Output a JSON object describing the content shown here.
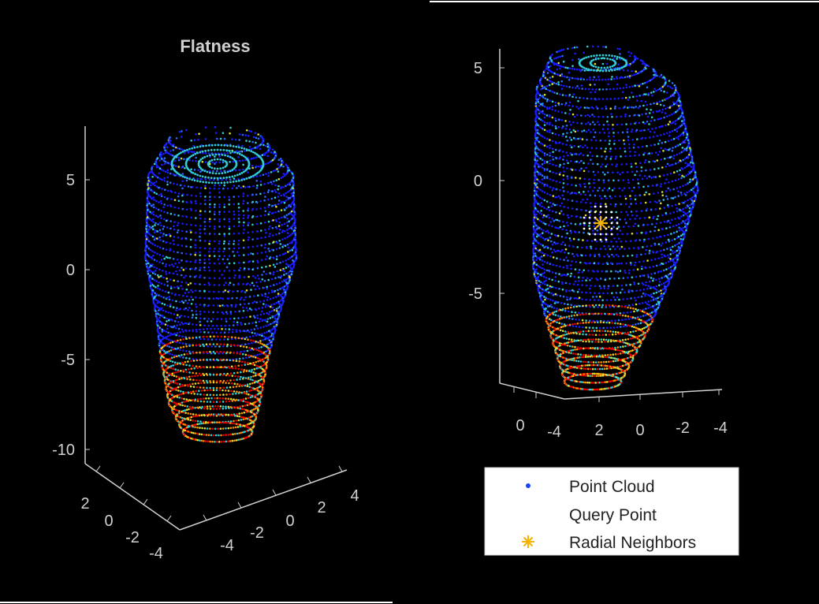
{
  "panels": {
    "left": {
      "title": "Flatness"
    },
    "right": {
      "title": ""
    }
  },
  "chart_data": [
    {
      "type": "scatter",
      "title": "Flatness",
      "subtype": "3d-point-cloud",
      "zlabel": "",
      "z_ticks": [
        "5",
        "0",
        "-5",
        "-10"
      ],
      "y_ticks": [
        "2",
        "0",
        "-2",
        "-4"
      ],
      "x_ticks": [
        "-4",
        "-2",
        "0",
        "2",
        "4"
      ],
      "colormap": [
        "#1a1aff",
        "#2a6bff",
        "#33ccd6",
        "#dede33",
        "#ff8c00",
        "#e60000"
      ],
      "point_color_default": "#1e40ff"
    },
    {
      "type": "scatter",
      "subtype": "3d-point-cloud",
      "z_ticks": [
        "5",
        "0",
        "-5"
      ],
      "x_ticks": [
        "0",
        "-4",
        "2",
        "0",
        "-2",
        "-4"
      ],
      "query_point": {
        "color": "#ffffff"
      },
      "radial_neighbors": {
        "color": "#f5b400"
      },
      "legend": {
        "placement": "bottom",
        "entries": [
          {
            "label": "Point Cloud",
            "color": "#1e40ff",
            "marker": "dot"
          },
          {
            "label": "Query Point",
            "color": "#ffffff",
            "marker": "dot"
          },
          {
            "label": "Radial Neighbors",
            "color": "#f5b400",
            "marker": "asterisk"
          }
        ]
      }
    }
  ]
}
